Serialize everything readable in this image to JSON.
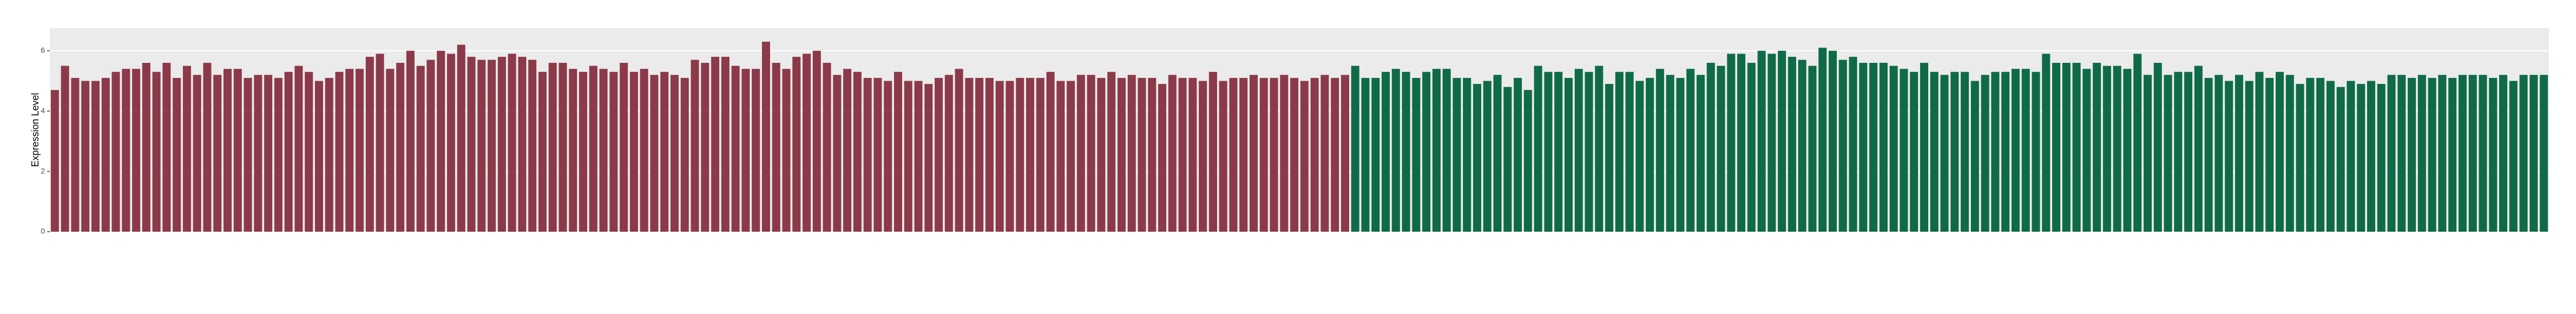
{
  "chart_data": {
    "type": "bar",
    "y_label": "Expression Level",
    "ylim": [
      0,
      6.75
    ],
    "yticks": [
      0,
      2,
      4,
      6
    ],
    "grid": true,
    "categories": [
      null,
      null,
      null,
      null,
      null,
      null,
      null,
      null,
      null,
      null,
      null,
      null,
      null,
      null,
      null,
      null,
      null,
      null,
      null,
      null,
      null,
      null,
      null,
      null,
      null,
      null,
      null,
      null,
      null,
      null,
      null,
      null,
      null,
      null,
      null,
      null,
      null,
      null,
      null,
      null,
      null,
      null,
      null,
      null,
      null,
      null,
      null,
      null,
      null,
      null,
      null,
      null,
      null,
      null,
      null,
      null,
      null,
      null,
      null,
      null,
      null,
      null,
      null,
      null,
      null,
      null,
      null,
      null,
      null,
      null,
      null,
      null,
      null,
      null,
      null,
      null,
      null,
      null,
      null,
      null,
      null,
      null,
      null,
      null,
      null,
      null,
      null,
      null,
      null,
      null,
      null,
      null,
      null,
      null,
      null,
      null,
      null,
      null,
      null,
      null,
      null,
      null,
      null,
      null,
      null,
      null,
      null,
      null,
      null,
      null,
      null,
      null,
      null,
      null,
      null,
      null,
      null,
      null,
      null,
      null,
      null,
      null,
      null,
      null,
      null,
      null,
      null,
      null,
      null,
      null,
      null,
      null,
      null,
      null,
      null,
      null,
      null,
      null,
      null,
      null,
      null,
      null,
      null,
      null,
      null,
      null,
      null,
      null,
      null,
      null,
      null,
      null,
      null,
      null,
      null,
      null,
      null,
      null,
      null,
      null,
      null,
      null,
      null,
      null,
      null,
      null,
      null,
      null,
      null,
      null,
      null,
      null,
      null,
      null,
      null,
      null,
      null,
      null,
      null,
      null,
      null,
      null,
      null,
      null,
      null,
      null,
      null,
      null,
      null,
      null,
      null,
      null,
      null,
      null,
      null,
      null,
      null,
      null,
      null,
      null,
      null,
      null,
      null,
      null,
      null,
      null,
      null,
      null,
      null,
      null,
      null,
      null,
      null,
      null,
      null,
      null,
      null,
      null,
      null,
      null,
      null,
      null,
      null,
      null,
      null,
      null,
      null,
      null,
      null,
      null,
      null,
      null,
      null,
      null,
      null,
      null,
      null,
      null,
      null,
      null,
      null,
      null,
      null,
      null,
      null,
      null
    ],
    "series": [
      {
        "color": "#8c3a49",
        "values": [
          4.7,
          5.5,
          5.1,
          5.0,
          5.0,
          5.1,
          5.3,
          5.4,
          5.4,
          5.6,
          5.3,
          5.6,
          5.1,
          5.5,
          5.2,
          5.6,
          5.2,
          5.4,
          5.4,
          5.1,
          5.2,
          5.2,
          5.1,
          5.3,
          5.5,
          5.3,
          5.0,
          5.1,
          5.3,
          5.4,
          5.4,
          5.8,
          5.9,
          5.4,
          5.6,
          6.0,
          5.5,
          5.7,
          6.0,
          5.9,
          6.2,
          5.8,
          5.7,
          5.7,
          5.8,
          5.9,
          5.8,
          5.7,
          5.3,
          5.6,
          5.6,
          5.4,
          5.3,
          5.5,
          5.4,
          5.3,
          5.6,
          5.3,
          5.4,
          5.2,
          5.3,
          5.2,
          5.1,
          5.7,
          5.6,
          5.8,
          5.8,
          5.5,
          5.4,
          5.4,
          6.3,
          5.6,
          5.4,
          5.8,
          5.9,
          6.0,
          5.6,
          5.2,
          5.4,
          5.3,
          5.1,
          5.1,
          5.0,
          5.3,
          5.0,
          5.0,
          4.9,
          5.1,
          5.2,
          5.4,
          5.1,
          5.1,
          5.1,
          5.0,
          5.0,
          5.1,
          5.1,
          5.1,
          5.3,
          5.0,
          5.0,
          5.2,
          5.2,
          5.1,
          5.3,
          5.1,
          5.2,
          5.1,
          5.1,
          4.9,
          5.2,
          5.1,
          5.1,
          5.0,
          5.3,
          5.0,
          5.1,
          5.1,
          5.2,
          5.1,
          5.1,
          5.2,
          5.1,
          5.0,
          5.1,
          5.2,
          5.1,
          5.2,
          null,
          null,
          null,
          null,
          null,
          null,
          null,
          null,
          null,
          null,
          null,
          null,
          null,
          null,
          null,
          null,
          null,
          null,
          null,
          null,
          null,
          null,
          null,
          null,
          null,
          null,
          null,
          null,
          null,
          null,
          null,
          null,
          null,
          null,
          null,
          null,
          null,
          null,
          null,
          null,
          null,
          null,
          null,
          null,
          null,
          null,
          null,
          null,
          null,
          null,
          null,
          null,
          null,
          null,
          null,
          null,
          null,
          null,
          null,
          null,
          null,
          null,
          null,
          null,
          null,
          null,
          null,
          null,
          null,
          null,
          null,
          null,
          null,
          null,
          null,
          null,
          null,
          null,
          null,
          null,
          null,
          null,
          null,
          null,
          null,
          null,
          null,
          null,
          null,
          null,
          null,
          null,
          null,
          null,
          null,
          null,
          null,
          null,
          null,
          null,
          null,
          null,
          null,
          null,
          null,
          null,
          null,
          null,
          null,
          null,
          null,
          null,
          null,
          null,
          null,
          null,
          null,
          null
        ]
      },
      {
        "color": "#0f6b47",
        "values": [
          null,
          null,
          null,
          null,
          null,
          null,
          null,
          null,
          null,
          null,
          null,
          null,
          null,
          null,
          null,
          null,
          null,
          null,
          null,
          null,
          null,
          null,
          null,
          null,
          null,
          null,
          null,
          null,
          null,
          null,
          null,
          null,
          null,
          null,
          null,
          null,
          null,
          null,
          null,
          null,
          null,
          null,
          null,
          null,
          null,
          null,
          null,
          null,
          null,
          null,
          null,
          null,
          null,
          null,
          null,
          null,
          null,
          null,
          null,
          null,
          null,
          null,
          null,
          null,
          null,
          null,
          null,
          null,
          null,
          null,
          null,
          null,
          null,
          null,
          null,
          null,
          null,
          null,
          null,
          null,
          null,
          null,
          null,
          null,
          null,
          null,
          null,
          null,
          null,
          null,
          null,
          null,
          null,
          null,
          null,
          null,
          null,
          null,
          null,
          null,
          null,
          null,
          null,
          null,
          null,
          null,
          null,
          null,
          null,
          null,
          null,
          null,
          null,
          null,
          null,
          null,
          null,
          null,
          null,
          null,
          null,
          null,
          null,
          null,
          null,
          null,
          null,
          null,
          5.5,
          5.1,
          5.1,
          5.3,
          5.4,
          5.3,
          5.1,
          5.3,
          5.4,
          5.4,
          5.1,
          5.1,
          4.9,
          5.0,
          5.2,
          4.8,
          5.1,
          4.7,
          5.5,
          5.3,
          5.3,
          5.1,
          5.4,
          5.3,
          5.5,
          4.9,
          5.3,
          5.3,
          5.0,
          5.1,
          5.4,
          5.2,
          5.1,
          5.4,
          5.2,
          5.6,
          5.5,
          5.9,
          5.9,
          5.6,
          6.0,
          5.9,
          6.0,
          5.8,
          5.7,
          5.5,
          6.1,
          6.0,
          5.7,
          5.8,
          5.6,
          5.6,
          5.6,
          5.5,
          5.4,
          5.3,
          5.6,
          5.3,
          5.2,
          5.3,
          5.3,
          5.0,
          5.2,
          5.3,
          5.3,
          5.4,
          5.4,
          5.3,
          5.9,
          5.6,
          5.6,
          5.6,
          5.4,
          5.6,
          5.5,
          5.5,
          5.4,
          5.9,
          5.2,
          5.6,
          5.2,
          5.3,
          5.3,
          5.5,
          5.1,
          5.2,
          5.0,
          5.2,
          5.0,
          5.3,
          5.1,
          5.3,
          5.2,
          4.9,
          5.1,
          5.1,
          5.0,
          4.8,
          5.0,
          4.9,
          5.0,
          4.9,
          5.2,
          5.2,
          5.1,
          5.2,
          5.1,
          5.2,
          5.1,
          5.2,
          5.2,
          5.2,
          5.1,
          5.2,
          5.0,
          5.2,
          5.2,
          5.2
        ]
      }
    ]
  }
}
